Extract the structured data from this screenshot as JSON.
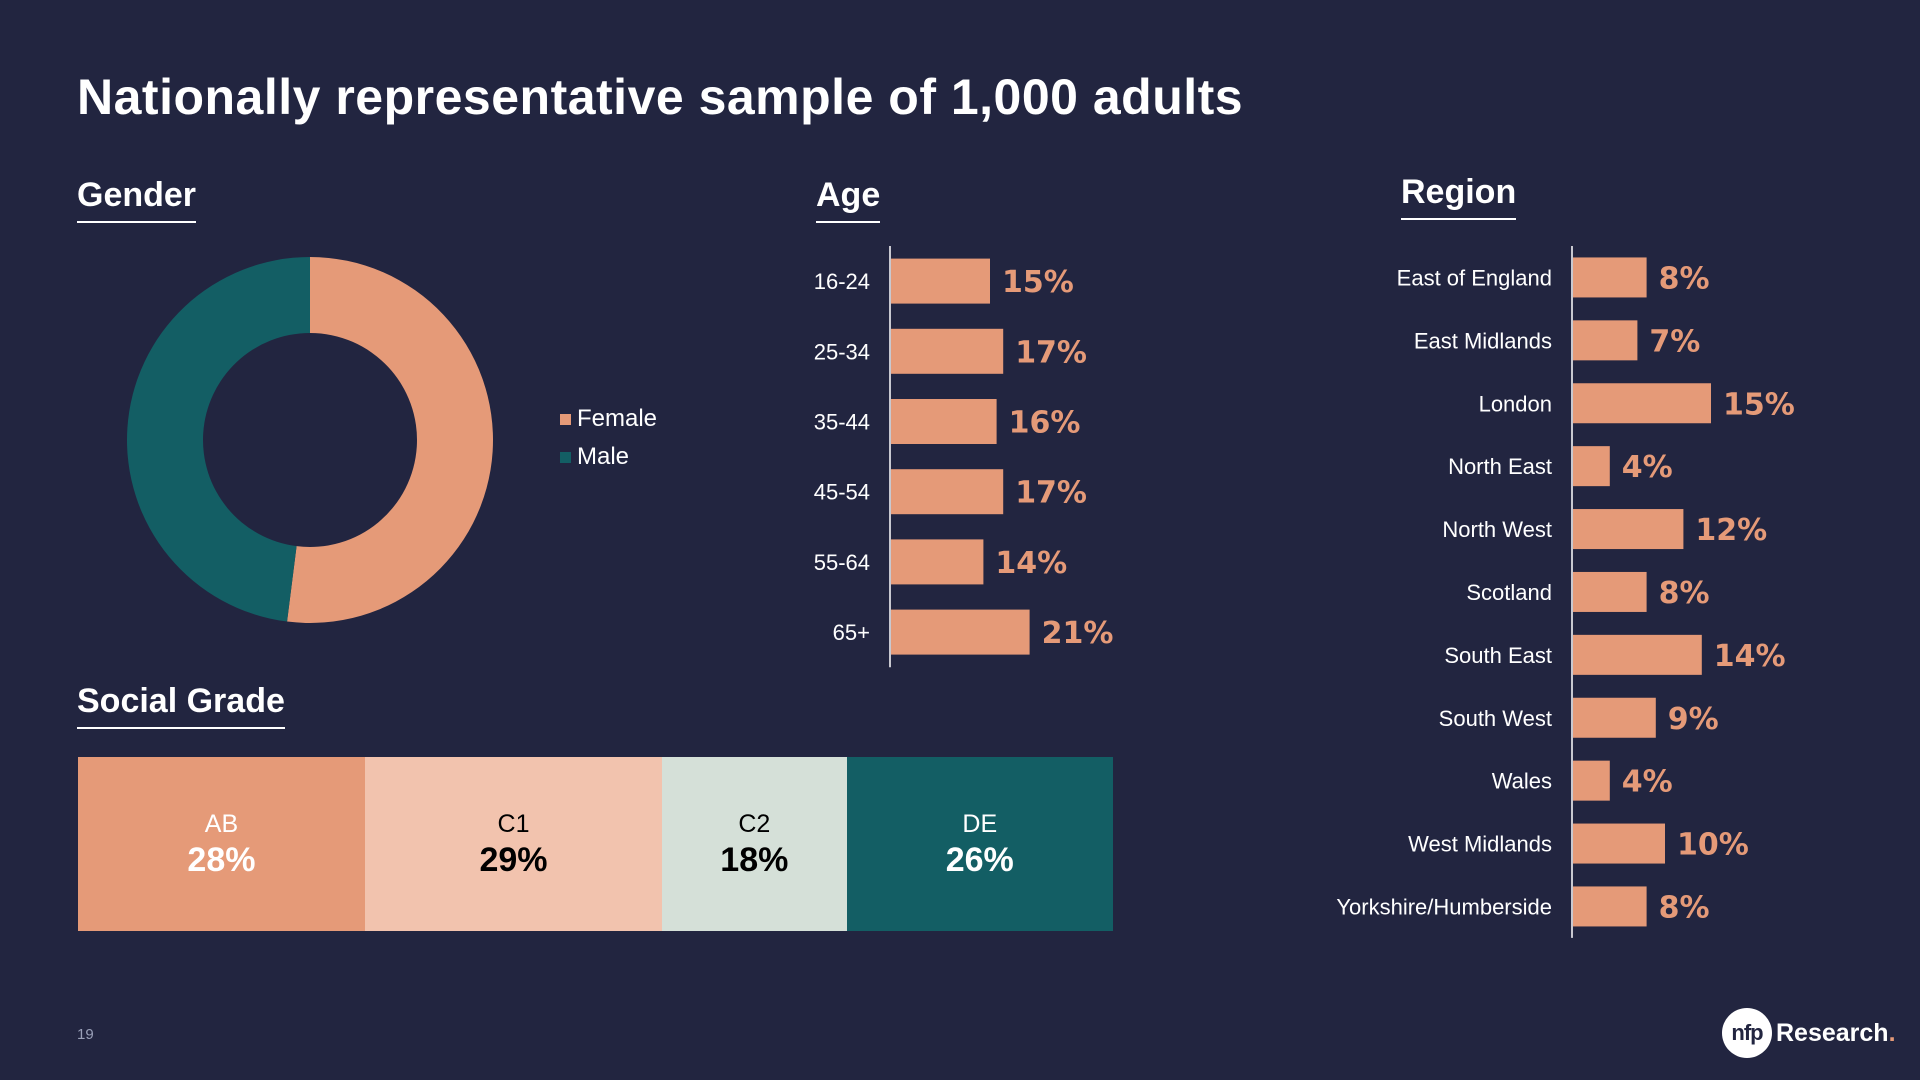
{
  "title": "Nationally representative sample of 1,000 adults",
  "page_number": "19",
  "logo": {
    "badge": "nfp",
    "text": "Research",
    "dot": "."
  },
  "colors": {
    "background": "#222540",
    "salmon": "#e59a78",
    "teal": "#135e64",
    "light_salmon": "#f2c3ae",
    "pale_grey": "#d5e0d8"
  },
  "gender": {
    "title": "Gender",
    "chart_data": {
      "type": "pie",
      "hole": true,
      "slices": [
        {
          "label": "Female",
          "value": 52,
          "color": "#e59a78"
        },
        {
          "label": "Male",
          "value": 48,
          "color": "#135e64"
        }
      ]
    }
  },
  "age": {
    "title": "Age",
    "chart_data": {
      "type": "bar",
      "orientation": "horizontal",
      "categories": [
        "16-24",
        "25-34",
        "35-44",
        "45-54",
        "55-64",
        "65+"
      ],
      "values": [
        15,
        17,
        16,
        17,
        14,
        21
      ],
      "value_labels": [
        "15%",
        "17%",
        "16%",
        "17%",
        "14%",
        "21%"
      ],
      "color": "#e59a78"
    }
  },
  "region": {
    "title": "Region",
    "chart_data": {
      "type": "bar",
      "orientation": "horizontal",
      "categories": [
        "East of England",
        "East Midlands",
        "London",
        "North East",
        "North West",
        "Scotland",
        "South East",
        "South West",
        "Wales",
        "West Midlands",
        "Yorkshire/Humberside"
      ],
      "values": [
        8,
        7,
        15,
        4,
        12,
        8,
        14,
        9,
        4,
        10,
        8
      ],
      "value_labels": [
        "8%",
        "7%",
        "15%",
        "4%",
        "12%",
        "8%",
        "14%",
        "9%",
        "4%",
        "10%",
        "8%"
      ],
      "color": "#e59a78"
    }
  },
  "social_grade": {
    "title": "Social Grade",
    "chart_data": {
      "type": "bar",
      "stacked": true,
      "segments": [
        {
          "category": "AB",
          "value": 28,
          "label": "28%",
          "color": "#e59a78",
          "text_color": "#ffffff"
        },
        {
          "category": "C1",
          "value": 29,
          "label": "29%",
          "color": "#f2c3ae",
          "text_color": "#000000"
        },
        {
          "category": "C2",
          "value": 18,
          "label": "18%",
          "color": "#d5e0d8",
          "text_color": "#000000"
        },
        {
          "category": "DE",
          "value": 26,
          "label": "26%",
          "color": "#135e64",
          "text_color": "#ffffff"
        }
      ]
    }
  }
}
